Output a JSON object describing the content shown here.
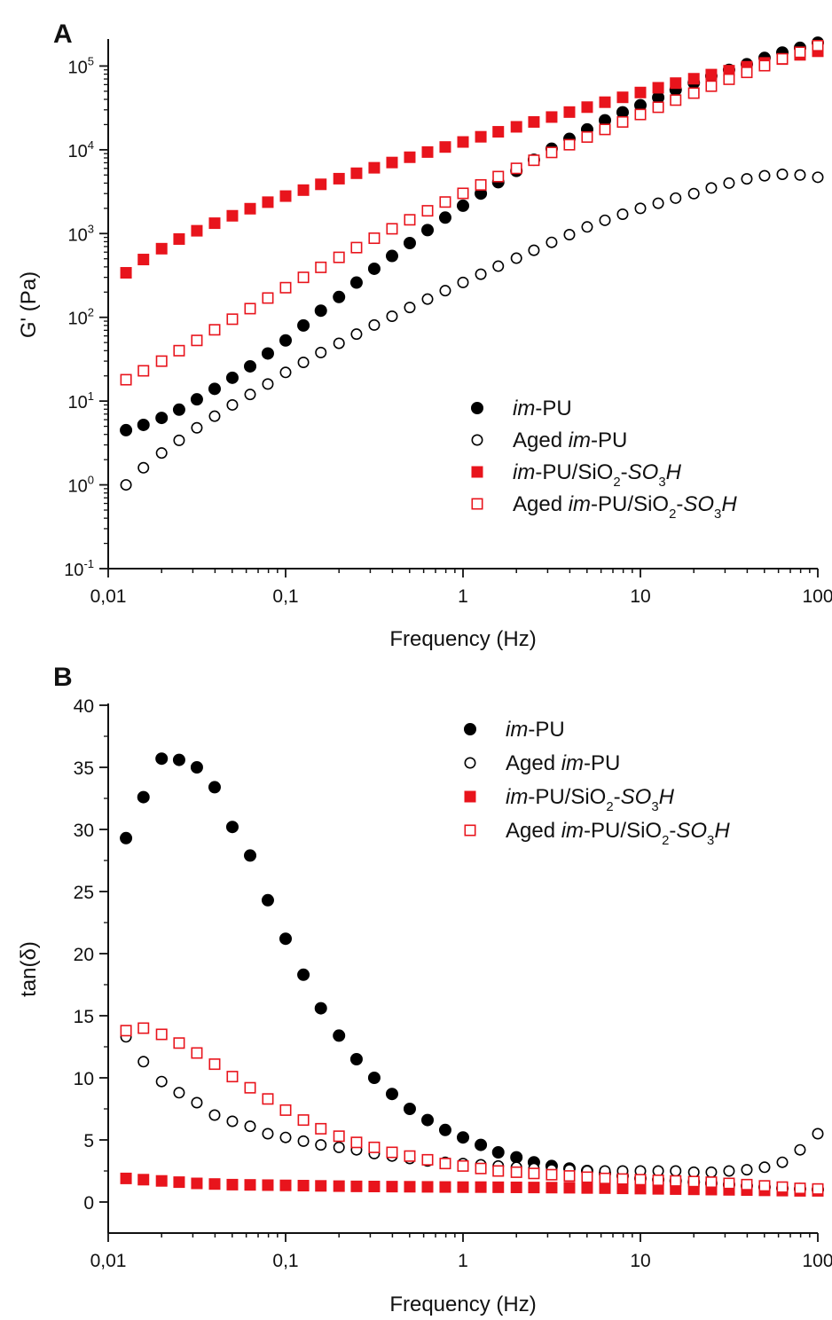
{
  "chart_data": [
    {
      "type": "scatter",
      "panel_label": "A",
      "xlabel": "Frequency (Hz)",
      "ylabel": "G' (Pa)",
      "xscale": "log",
      "yscale": "log",
      "xlim": [
        0.01,
        100
      ],
      "ylim": [
        0.1,
        200000
      ],
      "x_ticks": [
        0.01,
        0.1,
        1,
        10,
        100
      ],
      "x_tick_labels": [
        "0,01",
        "0,1",
        "1",
        "10",
        "100"
      ],
      "y_ticks": [
        {
          "value": 0.1,
          "base": "10",
          "exp": "-1"
        },
        {
          "value": 1,
          "base": "10",
          "exp": "0"
        },
        {
          "value": 10,
          "base": "10",
          "exp": "1"
        },
        {
          "value": 100,
          "base": "10",
          "exp": "2"
        },
        {
          "value": 1000,
          "base": "10",
          "exp": "3"
        },
        {
          "value": 10000,
          "base": "10",
          "exp": "4"
        },
        {
          "value": 100000,
          "base": "10",
          "exp": "5"
        }
      ],
      "legend_position": "bottom-right",
      "x": [
        0.0126,
        0.0158,
        0.02,
        0.0251,
        0.0316,
        0.0398,
        0.0501,
        0.0631,
        0.0794,
        0.1,
        0.126,
        0.158,
        0.2,
        0.251,
        0.316,
        0.398,
        0.501,
        0.631,
        0.794,
        1.0,
        1.26,
        1.58,
        2.0,
        2.51,
        3.16,
        3.98,
        5.01,
        6.31,
        7.94,
        10.0,
        12.6,
        15.8,
        20.0,
        25.1,
        31.6,
        39.8,
        50.1,
        63.1,
        79.4,
        100.0
      ],
      "series": [
        {
          "name": "im-PU",
          "marker": "filled-circle",
          "color": "#000000",
          "values": [
            4.5,
            5.2,
            6.3,
            7.9,
            10.5,
            14,
            19,
            26,
            37,
            53,
            80,
            120,
            175,
            260,
            380,
            540,
            770,
            1100,
            1550,
            2150,
            3000,
            4100,
            5600,
            7600,
            10300,
            13500,
            17500,
            22500,
            28000,
            34000,
            42000,
            52000,
            63000,
            76000,
            90000,
            105000,
            125000,
            145000,
            165000,
            190000
          ]
        },
        {
          "name": "Aged im-PU",
          "marker": "open-circle",
          "color": "#000000",
          "values": [
            1.0,
            1.6,
            2.4,
            3.4,
            4.8,
            6.6,
            9.0,
            12,
            16,
            22,
            29,
            38,
            49,
            63,
            81,
            103,
            131,
            165,
            208,
            261,
            327,
            408,
            508,
            632,
            785,
            970,
            1200,
            1440,
            1700,
            2000,
            2300,
            2650,
            3000,
            3500,
            4000,
            4500,
            4900,
            5100,
            5000,
            4700
          ]
        },
        {
          "name": "im-PU/SiO2-SO3H",
          "marker": "filled-square",
          "color": "#e8141c",
          "values": [
            340,
            490,
            660,
            860,
            1080,
            1330,
            1630,
            1980,
            2370,
            2800,
            3300,
            3870,
            4520,
            5250,
            6100,
            7050,
            8150,
            9400,
            10800,
            12400,
            14300,
            16400,
            18800,
            21500,
            24600,
            28200,
            32300,
            37000,
            42300,
            48300,
            55000,
            62500,
            70500,
            79000,
            88000,
            98000,
            109000,
            121000,
            136000,
            150000
          ]
        },
        {
          "name": "Aged im-PU/SiO2-SO3H",
          "marker": "open-square",
          "color": "#e8141c",
          "values": [
            18,
            23,
            30,
            40,
            53,
            71,
            95,
            127,
            170,
            226,
            300,
            395,
            520,
            680,
            880,
            1140,
            1460,
            1870,
            2380,
            3020,
            3810,
            4790,
            6000,
            7500,
            9300,
            11500,
            14200,
            17500,
            21500,
            26400,
            32200,
            39200,
            47500,
            57500,
            69500,
            84000,
            101000,
            122000,
            146000,
            175000
          ]
        }
      ]
    },
    {
      "type": "scatter",
      "panel_label": "B",
      "xlabel": "Frequency (Hz)",
      "ylabel": "tan(δ)",
      "xscale": "log",
      "yscale": "linear",
      "xlim": [
        0.01,
        100
      ],
      "ylim": [
        -2.5,
        40
      ],
      "x_ticks": [
        0.01,
        0.1,
        1,
        10,
        100
      ],
      "x_tick_labels": [
        "0,01",
        "0,1",
        "1",
        "10",
        "100"
      ],
      "y_ticks": [
        0,
        5,
        10,
        15,
        20,
        25,
        30,
        35,
        40
      ],
      "y_tick_labels": [
        "0",
        "5",
        "10",
        "15",
        "20",
        "25",
        "30",
        "35",
        "40"
      ],
      "legend_position": "top-right",
      "x": [
        0.0126,
        0.0158,
        0.02,
        0.0251,
        0.0316,
        0.0398,
        0.0501,
        0.0631,
        0.0794,
        0.1,
        0.126,
        0.158,
        0.2,
        0.251,
        0.316,
        0.398,
        0.501,
        0.631,
        0.794,
        1.0,
        1.26,
        1.58,
        2.0,
        2.51,
        3.16,
        3.98,
        5.01,
        6.31,
        7.94,
        10.0,
        12.6,
        15.8,
        20.0,
        25.1,
        31.6,
        39.8,
        50.1,
        63.1,
        79.4,
        100.0
      ],
      "series": [
        {
          "name": "im-PU",
          "marker": "filled-circle",
          "color": "#000000",
          "values": [
            29.3,
            32.6,
            35.7,
            35.6,
            35.0,
            33.4,
            30.2,
            27.9,
            24.3,
            21.2,
            18.3,
            15.6,
            13.4,
            11.5,
            10.0,
            8.7,
            7.5,
            6.6,
            5.8,
            5.2,
            4.6,
            4.0,
            3.6,
            3.2,
            2.9,
            2.7,
            2.5,
            2.3,
            2.1,
            1.9,
            1.8,
            1.7,
            1.6,
            1.5,
            1.4,
            1.3,
            1.2,
            1.1,
            1.05,
            1.0
          ]
        },
        {
          "name": "Aged im-PU",
          "marker": "open-circle",
          "color": "#000000",
          "values": [
            13.3,
            11.3,
            9.7,
            8.8,
            8.0,
            7.0,
            6.5,
            6.1,
            5.5,
            5.2,
            4.9,
            4.6,
            4.4,
            4.2,
            3.9,
            3.7,
            3.5,
            3.3,
            3.2,
            3.1,
            3.0,
            2.9,
            2.8,
            2.7,
            2.6,
            2.6,
            2.5,
            2.5,
            2.5,
            2.5,
            2.5,
            2.5,
            2.4,
            2.4,
            2.5,
            2.6,
            2.8,
            3.2,
            4.2,
            5.5
          ]
        },
        {
          "name": "im-PU/SiO2-SO3H",
          "marker": "filled-square",
          "color": "#e8141c",
          "values": [
            1.9,
            1.8,
            1.7,
            1.6,
            1.5,
            1.45,
            1.4,
            1.38,
            1.36,
            1.34,
            1.32,
            1.3,
            1.28,
            1.26,
            1.25,
            1.24,
            1.23,
            1.22,
            1.21,
            1.2,
            1.2,
            1.19,
            1.18,
            1.17,
            1.16,
            1.15,
            1.13,
            1.12,
            1.1,
            1.08,
            1.06,
            1.04,
            1.02,
            1.0,
            0.98,
            0.96,
            0.94,
            0.92,
            0.9,
            0.9
          ]
        },
        {
          "name": "Aged im-PU/SiO2-SO3H",
          "marker": "open-square",
          "color": "#e8141c",
          "values": [
            13.8,
            14.0,
            13.5,
            12.8,
            12.0,
            11.1,
            10.1,
            9.2,
            8.3,
            7.4,
            6.6,
            5.9,
            5.3,
            4.8,
            4.4,
            4.0,
            3.7,
            3.4,
            3.1,
            2.9,
            2.7,
            2.5,
            2.4,
            2.3,
            2.2,
            2.1,
            2.0,
            1.9,
            1.85,
            1.8,
            1.75,
            1.7,
            1.65,
            1.6,
            1.5,
            1.4,
            1.3,
            1.2,
            1.1,
            1.05
          ]
        }
      ]
    }
  ]
}
